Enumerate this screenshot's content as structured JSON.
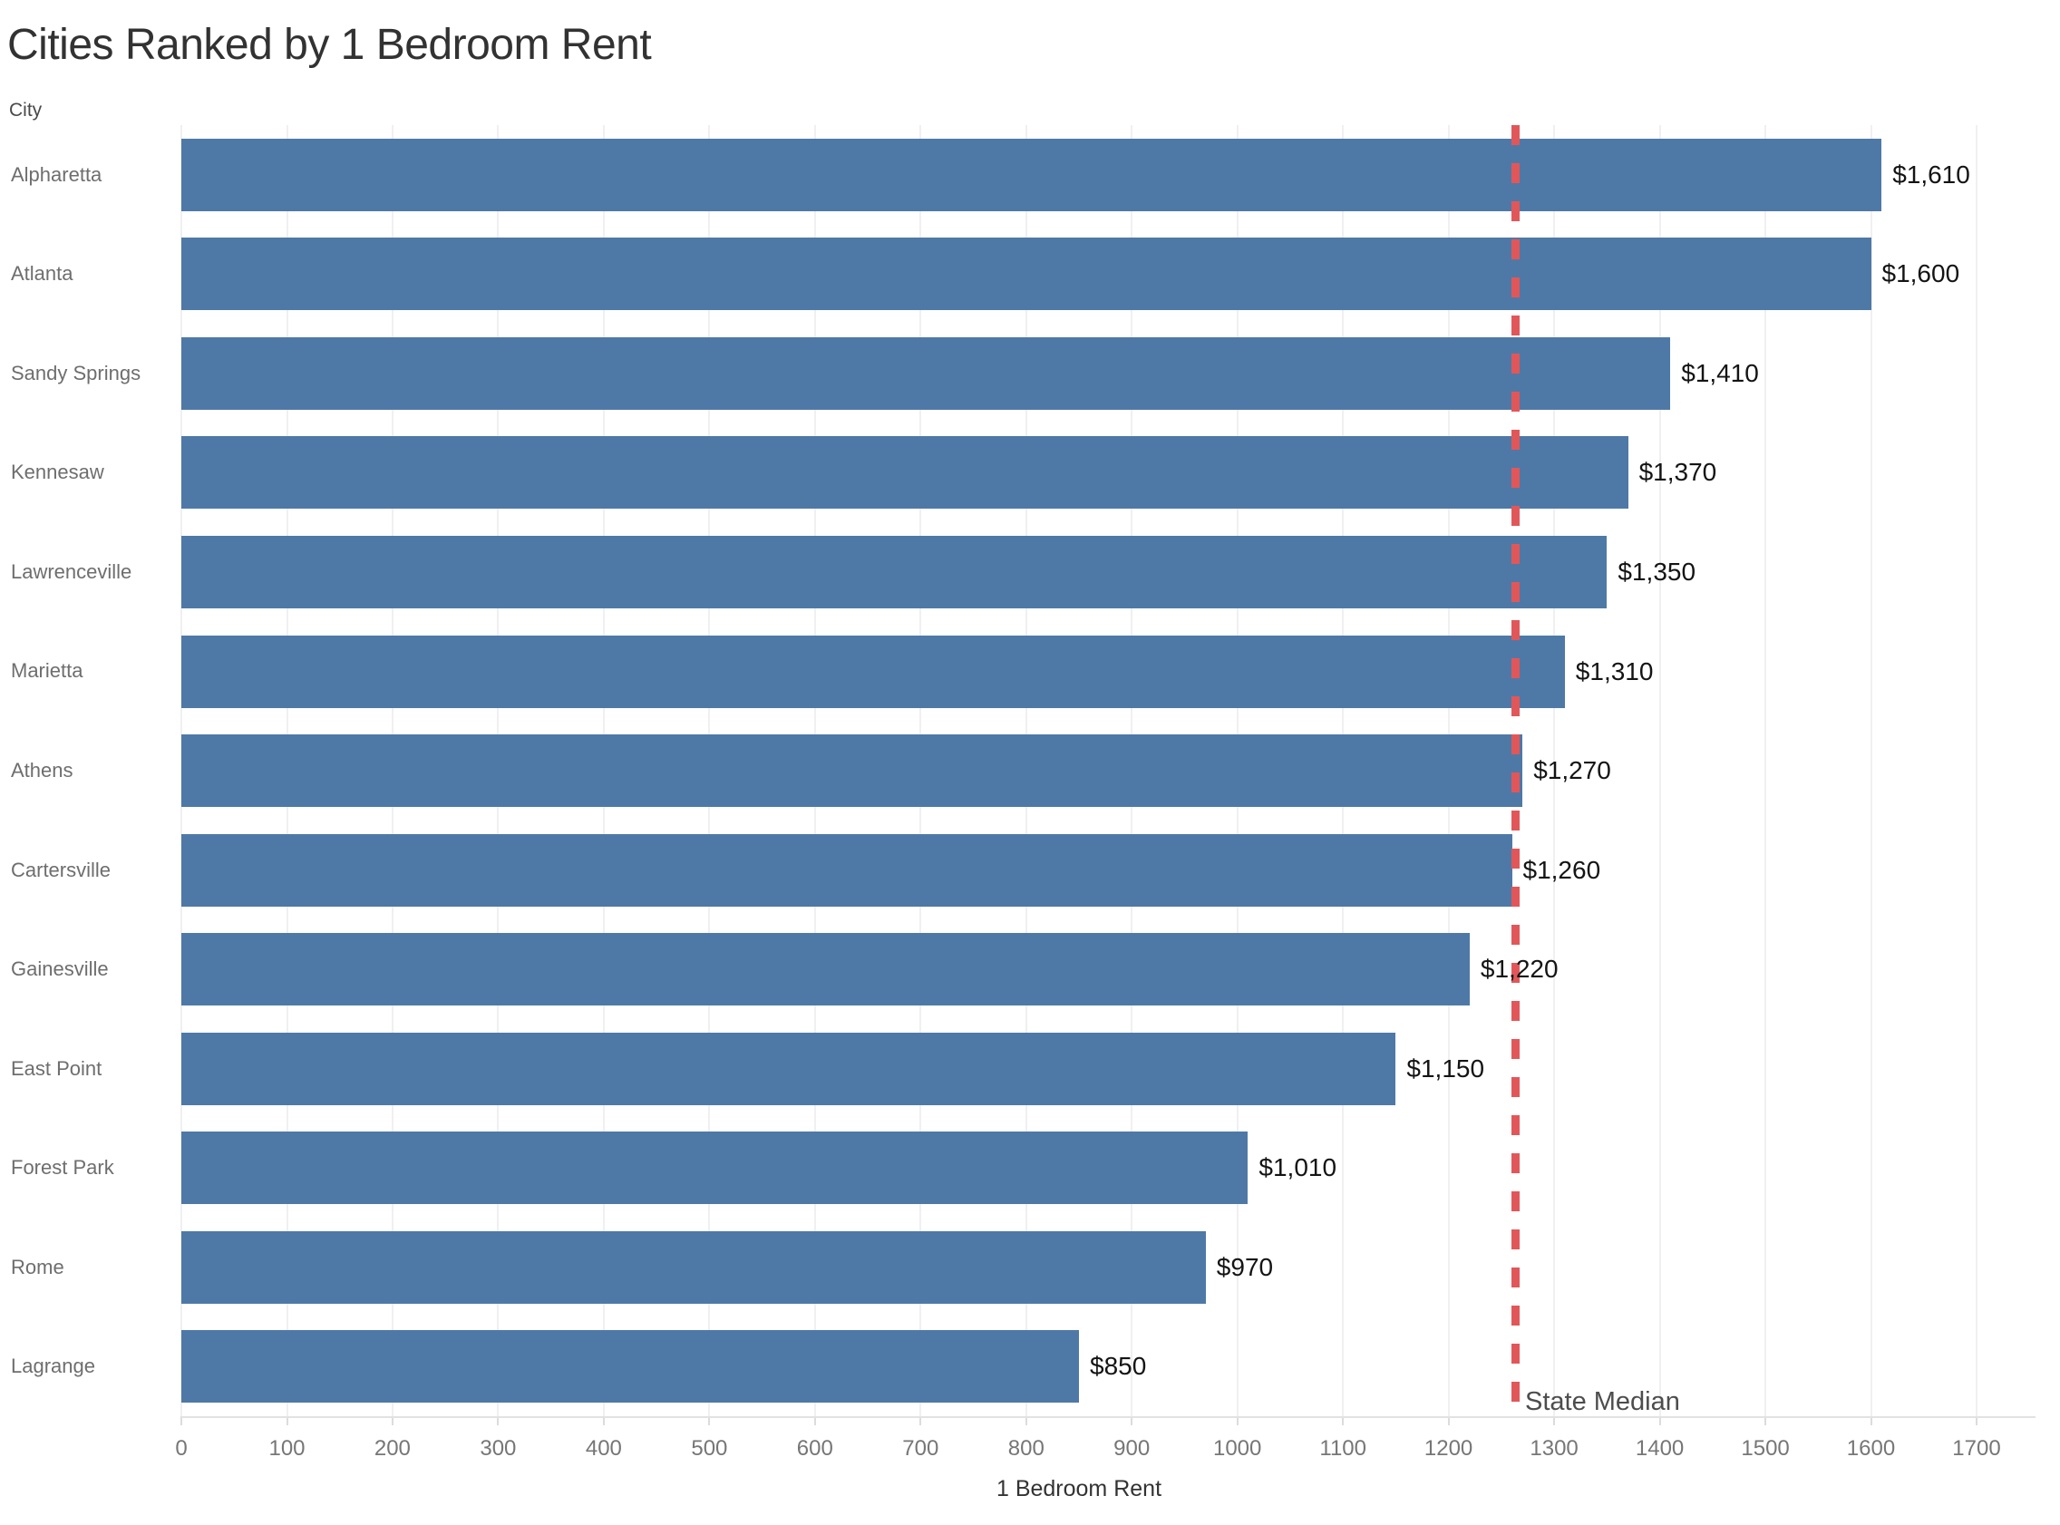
{
  "title": "Cities Ranked by 1 Bedroom Rent",
  "row_axis_header": "City",
  "colors": {
    "bar": "#4e79a7",
    "reference_line": "#e15759",
    "gridline": "#f0f0f0",
    "title_text": "#323232",
    "city_label_text": "#6e6e6e",
    "value_label_text": "#141414",
    "tick_label_text": "#767676",
    "background": "#ffffff"
  },
  "chart_data": {
    "type": "bar",
    "orientation": "horizontal",
    "title": "Cities Ranked by 1 Bedroom Rent",
    "categories": [
      "Alpharetta",
      "Atlanta",
      "Sandy Springs",
      "Kennesaw",
      "Lawrenceville",
      "Marietta",
      "Athens",
      "Cartersville",
      "Gainesville",
      "East Point",
      "Forest Park",
      "Rome",
      "Lagrange"
    ],
    "values": [
      1610,
      1600,
      1410,
      1370,
      1350,
      1310,
      1270,
      1260,
      1220,
      1150,
      1010,
      970,
      850
    ],
    "value_labels": [
      "$1,610",
      "$1,600",
      "$1,410",
      "$1,370",
      "$1,350",
      "$1,310",
      "$1,270",
      "$1,260",
      "$1,220",
      "$1,150",
      "$1,010",
      "$970",
      "$850"
    ],
    "xlabel": "1 Bedroom Rent",
    "ylabel": "City",
    "xlim": [
      0,
      1756
    ],
    "xticks": [
      0,
      100,
      200,
      300,
      400,
      500,
      600,
      700,
      800,
      900,
      1000,
      1100,
      1200,
      1300,
      1400,
      1500,
      1600,
      1700
    ],
    "grid": true,
    "legend": false,
    "reference_line": {
      "label": "State Median",
      "value": 1263,
      "style": "dashed",
      "color": "#e15759"
    }
  }
}
